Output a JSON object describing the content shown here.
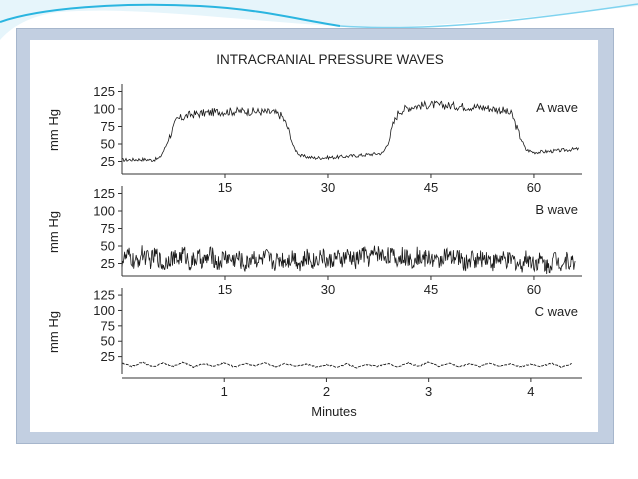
{
  "colors": {
    "frame": "#c2cfe1",
    "panel": "#ffffff",
    "trace": "#1a1a1a",
    "accent_swoosh": "#2ab5e0"
  },
  "chart_data": [
    {
      "type": "line",
      "title": "INTRACRANIAL PRESSURE WAVES",
      "ylabel": "mm Hg",
      "series_label": "A wave",
      "yticks": [
        "125",
        "100",
        "75",
        "50",
        "25"
      ],
      "ytick_values": [
        125,
        100,
        75,
        50,
        25
      ],
      "xticks": [
        "15",
        "30",
        "45",
        "60"
      ],
      "xtick_values": [
        15,
        30,
        45,
        60
      ],
      "xlabel": "",
      "xlim": [
        0,
        67
      ],
      "ylim": [
        10,
        130
      ],
      "x": [
        0,
        3,
        4.5,
        5.5,
        6.3,
        7,
        8,
        10,
        14,
        18,
        22,
        23.3,
        24.2,
        25,
        26,
        28,
        31,
        35,
        38,
        38.8,
        39.5,
        40.3,
        41.2,
        42.5,
        45,
        49,
        53,
        55.5,
        56.8,
        57.8,
        58.8,
        60,
        63,
        66.5
      ],
      "y": [
        27,
        28,
        27,
        30,
        45,
        62,
        85,
        92,
        96,
        97,
        95,
        90,
        72,
        45,
        33,
        30,
        31,
        34,
        37,
        52,
        78,
        96,
        100,
        104,
        106,
        104,
        102,
        98,
        92,
        65,
        42,
        38,
        40,
        43
      ]
    },
    {
      "type": "line",
      "ylabel": "mm Hg",
      "series_label": "B wave",
      "yticks": [
        "125",
        "100",
        "75",
        "50",
        "25"
      ],
      "ytick_values": [
        125,
        100,
        75,
        50,
        25
      ],
      "xticks": [
        "15",
        "30",
        "45",
        "60"
      ],
      "xtick_values": [
        15,
        30,
        45,
        60
      ],
      "xlabel": "",
      "xlim": [
        0,
        67
      ],
      "ylim": [
        10,
        130
      ],
      "x": [
        0,
        1,
        2,
        3,
        4,
        5,
        6,
        7,
        8,
        9,
        10,
        11,
        12,
        13,
        14,
        15,
        16,
        17,
        18,
        19,
        20,
        21,
        22,
        23,
        24,
        25,
        26,
        27,
        28,
        29,
        30,
        31,
        32,
        33,
        34,
        35,
        36,
        37,
        38,
        39,
        40,
        41,
        42,
        43,
        44,
        45,
        46,
        47,
        48,
        49,
        50,
        51,
        52,
        53,
        54,
        55,
        56,
        57,
        58,
        59,
        60,
        61,
        62,
        63,
        64,
        65,
        66
      ],
      "y": [
        30,
        36,
        24,
        40,
        28,
        38,
        22,
        35,
        30,
        40,
        25,
        34,
        28,
        38,
        24,
        36,
        30,
        33,
        22,
        37,
        28,
        35,
        26,
        32,
        30,
        36,
        24,
        34,
        28,
        38,
        26,
        33,
        30,
        36,
        28,
        40,
        32,
        42,
        36,
        38,
        30,
        37,
        28,
        36,
        32,
        34,
        26,
        38,
        30,
        35,
        24,
        33,
        29,
        36,
        26,
        32,
        28,
        30,
        22,
        34,
        26,
        30,
        20,
        33,
        26,
        30,
        24
      ]
    },
    {
      "type": "line",
      "ylabel": "mm Hg",
      "series_label": "C wave",
      "yticks": [
        "125",
        "100",
        "75",
        "50",
        "25"
      ],
      "ytick_values": [
        125,
        100,
        75,
        50,
        25
      ],
      "xticks": [
        "1",
        "2",
        "3",
        "4"
      ],
      "xtick_values": [
        1,
        2,
        3,
        4
      ],
      "xlabel": "Minutes",
      "xlim": [
        0,
        4.5
      ],
      "ylim": [
        0,
        130
      ],
      "x": [
        0,
        0.1,
        0.2,
        0.3,
        0.4,
        0.5,
        0.6,
        0.7,
        0.8,
        0.9,
        1,
        1.1,
        1.2,
        1.3,
        1.4,
        1.5,
        1.6,
        1.7,
        1.8,
        1.9,
        2,
        2.1,
        2.2,
        2.3,
        2.4,
        2.5,
        2.6,
        2.7,
        2.8,
        2.9,
        3,
        3.1,
        3.2,
        3.3,
        3.4,
        3.5,
        3.6,
        3.7,
        3.8,
        3.9,
        4,
        4.1,
        4.2,
        4.3,
        4.4
      ],
      "y": [
        14,
        9,
        16,
        8,
        15,
        9,
        16,
        8,
        14,
        9,
        15,
        8,
        14,
        10,
        15,
        8,
        14,
        9,
        13,
        8,
        12,
        8,
        13,
        7,
        12,
        9,
        14,
        8,
        15,
        9,
        16,
        9,
        15,
        8,
        14,
        9,
        15,
        9,
        14,
        8,
        13,
        9,
        14,
        8,
        13
      ]
    }
  ]
}
